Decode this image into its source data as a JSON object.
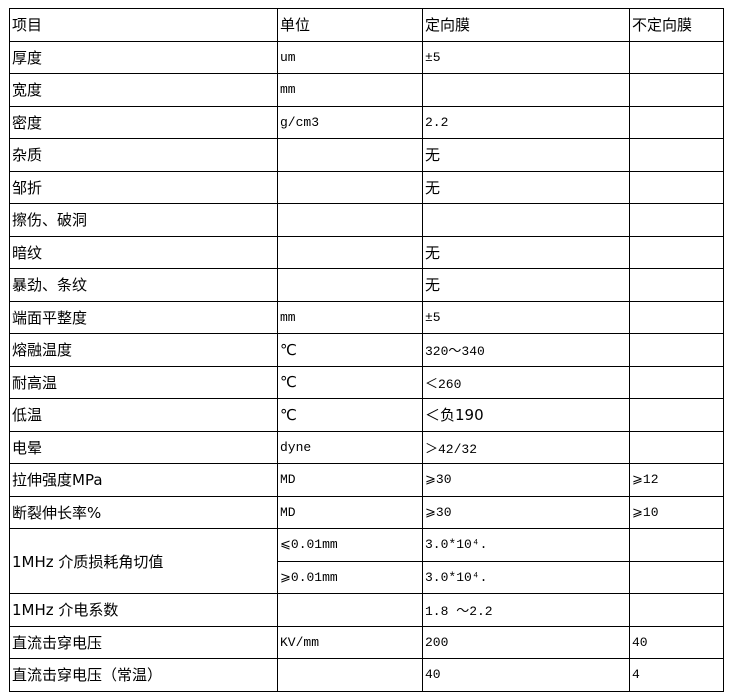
{
  "header": [
    "项目",
    "单位",
    "定向膜",
    "不定向膜"
  ],
  "rows": [
    {
      "item": "厚度",
      "unit": "um",
      "oriented": "±5",
      "non_oriented": ""
    },
    {
      "item": "宽度",
      "unit": "mm",
      "oriented": "",
      "non_oriented": ""
    },
    {
      "item": "密度",
      "unit": "g/cm3",
      "oriented": "2.2",
      "non_oriented": ""
    },
    {
      "item": "杂质",
      "unit": "",
      "oriented": "无",
      "non_oriented": ""
    },
    {
      "item": "邹折",
      "unit": "",
      "oriented": "无",
      "non_oriented": ""
    },
    {
      "item": "擦伤、破洞",
      "unit": "",
      "oriented": "",
      "non_oriented": ""
    },
    {
      "item": "暗纹",
      "unit": "",
      "oriented": "无",
      "non_oriented": ""
    },
    {
      "item": "暴劲、条纹",
      "unit": "",
      "oriented": "无",
      "non_oriented": ""
    },
    {
      "item": "端面平整度",
      "unit": "mm",
      "oriented": "±5",
      "non_oriented": ""
    },
    {
      "item": "熔融温度",
      "unit": "℃",
      "oriented": "320～340",
      "non_oriented": ""
    },
    {
      "item": "耐高温",
      "unit": "℃",
      "oriented": "＜260",
      "non_oriented": ""
    },
    {
      "item": "低温",
      "unit": "℃",
      "oriented": "＜负190",
      "non_oriented": ""
    },
    {
      "item": "电晕",
      "unit": "dyne",
      "oriented": "＞42/32",
      "non_oriented": ""
    },
    {
      "item": "拉伸强度MPa",
      "unit": "MD",
      "oriented": "⩾30",
      "non_oriented": "⩾12"
    },
    {
      "item": "断裂伸长率%",
      "unit": "MD",
      "oriented": "⩾30",
      "non_oriented": "⩾10"
    }
  ],
  "loss_tangent": {
    "item": "1MHz 介质损耗角切值",
    "sub": [
      {
        "unit": "⩽0.01mm",
        "oriented": "3.0*10⁴.",
        "non_oriented": ""
      },
      {
        "unit": "⩾0.01mm",
        "oriented": "3.0*10⁴.",
        "non_oriented": ""
      }
    ]
  },
  "tail_rows": [
    {
      "item": "1MHz 介电系数",
      "unit": "",
      "oriented": "1.8 ～2.2",
      "non_oriented": ""
    },
    {
      "item": "直流击穿电压",
      "unit": "KV/mm",
      "oriented": "200",
      "non_oriented": "40"
    },
    {
      "item": "直流击穿电压（常温）",
      "unit": "",
      "oriented": "40",
      "non_oriented": "4"
    }
  ]
}
